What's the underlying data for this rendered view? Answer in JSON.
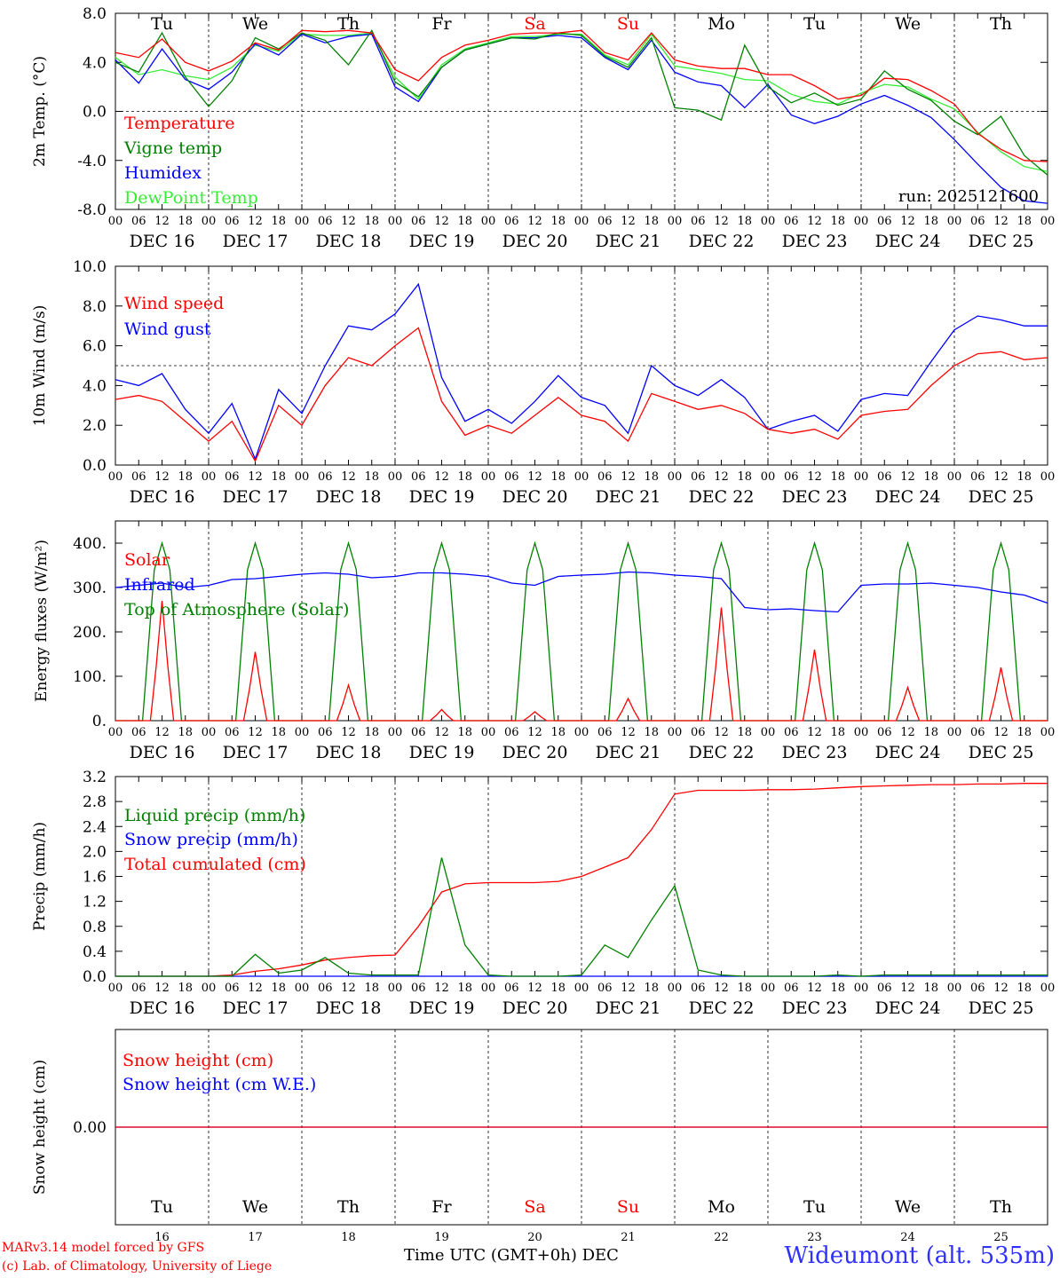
{
  "colors": {
    "red": "#ff0000",
    "green": "#008000",
    "blue": "#0000ff",
    "lightgreen": "#33ee33",
    "axis": "#000000",
    "grid": "#000000",
    "weekend": "#ff0000"
  },
  "time_axis": {
    "hour_ticks": [
      "00",
      "06",
      "12",
      "18"
    ],
    "days": [
      "DEC 16",
      "DEC 17",
      "DEC 18",
      "DEC 19",
      "DEC 20",
      "DEC 21",
      "DEC 22",
      "DEC 23",
      "DEC 24",
      "DEC 25"
    ],
    "weekdays": [
      "Tu",
      "We",
      "Th",
      "Fr",
      "Sa",
      "Su",
      "Mo",
      "Tu",
      "We",
      "Th"
    ],
    "weekend_index": [
      4,
      5
    ],
    "day_numbers": [
      "16",
      "17",
      "18",
      "19",
      "20",
      "21",
      "22",
      "23",
      "24",
      "25"
    ]
  },
  "chart_data": [
    {
      "type": "line",
      "id": "temp",
      "ylabel": "2m Temp. (°C)",
      "ylim": [
        -8,
        8
      ],
      "yticks": [
        "8.0",
        "4.0",
        "0.0",
        "-4.0",
        "-8.0"
      ],
      "ytick_values": [
        8,
        4,
        0,
        -4,
        -8
      ],
      "ref_line": 0,
      "annotation": "run: 2025121600",
      "x_hours": [
        0,
        6,
        12,
        18,
        24,
        30,
        36,
        42,
        48,
        54,
        60,
        66,
        72,
        78,
        84,
        90,
        96,
        102,
        108,
        114,
        120,
        126,
        132,
        138,
        144,
        150,
        156,
        162,
        168,
        174,
        180,
        186,
        192,
        198,
        204,
        210,
        216,
        222,
        228,
        234,
        240
      ],
      "series": [
        {
          "name": "Temperature",
          "color": "#ff0000",
          "values": [
            4.8,
            4.4,
            5.9,
            4.0,
            3.3,
            4.1,
            5.6,
            5.0,
            6.6,
            6.5,
            6.6,
            6.4,
            3.4,
            2.5,
            4.4,
            5.4,
            5.8,
            6.3,
            6.4,
            6.4,
            6.6,
            4.8,
            4.2,
            6.4,
            4.2,
            3.7,
            3.5,
            3.5,
            3.0,
            3.0,
            2.1,
            1.0,
            1.3,
            2.7,
            2.6,
            1.7,
            0.6,
            -1.8,
            -3.1,
            -4.0,
            -4.1
          ]
        },
        {
          "name": "Vigne temp",
          "color": "#008000",
          "values": [
            4.0,
            3.2,
            6.4,
            2.8,
            0.4,
            2.5,
            6.0,
            5.1,
            6.4,
            5.8,
            3.8,
            6.6,
            2.4,
            1.2,
            3.6,
            5.0,
            5.5,
            6.0,
            5.9,
            6.4,
            6.2,
            4.5,
            3.6,
            6.0,
            0.3,
            0.1,
            -0.7,
            5.4,
            2.0,
            0.7,
            1.5,
            0.5,
            1.0,
            3.3,
            1.8,
            0.9,
            -0.8,
            -1.9,
            -0.4,
            -3.6,
            -5.2
          ]
        },
        {
          "name": "Humidex",
          "color": "#0000ff",
          "values": [
            4.2,
            2.3,
            5.1,
            2.6,
            1.8,
            3.2,
            5.5,
            4.6,
            6.3,
            5.6,
            6.1,
            6.3,
            2.0,
            0.8,
            3.6,
            5.0,
            5.5,
            6.0,
            6.0,
            6.2,
            6.0,
            4.4,
            3.4,
            5.8,
            3.2,
            2.4,
            2.1,
            0.3,
            2.2,
            -0.3,
            -1.0,
            -0.4,
            0.6,
            1.3,
            0.5,
            -0.5,
            -2.3,
            -4.3,
            -6.2,
            -7.3,
            -7.5
          ]
        },
        {
          "name": "DewPoint Temp",
          "color": "#33ee33",
          "values": [
            4.4,
            3.0,
            3.4,
            2.9,
            2.6,
            3.6,
            5.4,
            4.9,
            6.3,
            6.2,
            6.2,
            6.4,
            2.8,
            1.0,
            3.8,
            5.1,
            5.6,
            6.1,
            6.1,
            6.3,
            6.3,
            4.6,
            3.8,
            6.3,
            3.7,
            3.4,
            3.1,
            2.6,
            2.5,
            1.4,
            0.8,
            0.6,
            1.5,
            2.2,
            2.0,
            1.0,
            0.2,
            -1.7,
            -3.3,
            -4.5,
            -4.9
          ]
        }
      ]
    },
    {
      "type": "line",
      "id": "wind",
      "ylabel": "10m Wind (m/s)",
      "ylim": [
        0,
        10
      ],
      "yticks": [
        "10.0",
        "8.0",
        "6.0",
        "4.0",
        "2.0",
        "0.0"
      ],
      "ytick_values": [
        10,
        8,
        6,
        4,
        2,
        0
      ],
      "ref_line": 5,
      "x_hours": [
        0,
        6,
        12,
        18,
        24,
        30,
        36,
        42,
        48,
        54,
        60,
        66,
        72,
        78,
        84,
        90,
        96,
        102,
        108,
        114,
        120,
        126,
        132,
        138,
        144,
        150,
        156,
        162,
        168,
        174,
        180,
        186,
        192,
        198,
        204,
        210,
        216,
        222,
        228,
        234,
        240
      ],
      "series": [
        {
          "name": "Wind speed",
          "color": "#ff0000",
          "values": [
            3.3,
            3.5,
            3.2,
            2.2,
            1.2,
            2.2,
            0.2,
            3.0,
            2.0,
            4.0,
            5.4,
            5.0,
            6.0,
            6.9,
            3.2,
            1.5,
            2.0,
            1.6,
            2.5,
            3.4,
            2.5,
            2.2,
            1.2,
            3.6,
            3.2,
            2.8,
            3.0,
            2.6,
            1.8,
            1.6,
            1.8,
            1.3,
            2.5,
            2.7,
            2.8,
            4.0,
            5.0,
            5.6,
            5.7,
            5.3,
            5.4
          ]
        },
        {
          "name": "Wind gust",
          "color": "#0000ff",
          "values": [
            4.3,
            4.0,
            4.6,
            2.8,
            1.6,
            3.1,
            0.3,
            3.8,
            2.6,
            5.0,
            7.0,
            6.8,
            7.6,
            9.1,
            4.4,
            2.2,
            2.8,
            2.1,
            3.2,
            4.5,
            3.4,
            3.0,
            1.6,
            5.0,
            4.0,
            3.5,
            4.3,
            3.4,
            1.8,
            2.2,
            2.5,
            1.7,
            3.3,
            3.6,
            3.5,
            5.2,
            6.8,
            7.5,
            7.3,
            7.0,
            7.0
          ]
        }
      ]
    },
    {
      "type": "line",
      "id": "energy",
      "ylabel": "Energy fluxes (W/m²)",
      "ylim": [
        0,
        450
      ],
      "yticks": [
        "400.",
        "300.",
        "200.",
        "100.",
        "0."
      ],
      "ytick_values": [
        400,
        300,
        200,
        100,
        0
      ],
      "daily_solar_peaks": [
        270,
        155,
        80,
        25,
        20,
        50,
        255,
        160,
        75,
        120
      ],
      "toa_peak": 400,
      "x_hours": [
        0,
        6,
        12,
        18,
        24,
        30,
        36,
        42,
        48,
        54,
        60,
        66,
        72,
        78,
        84,
        90,
        96,
        102,
        108,
        114,
        120,
        126,
        132,
        138,
        144,
        150,
        156,
        162,
        168,
        174,
        180,
        186,
        192,
        198,
        204,
        210,
        216,
        222,
        228,
        234,
        240
      ],
      "series": [
        {
          "name": "Solar",
          "color": "#ff0000",
          "values": []
        },
        {
          "name": "Infrared",
          "color": "#0000ff",
          "values": [
            300,
            305,
            310,
            300,
            305,
            318,
            320,
            325,
            330,
            333,
            330,
            322,
            325,
            333,
            333,
            330,
            325,
            310,
            305,
            325,
            328,
            330,
            335,
            333,
            328,
            325,
            320,
            255,
            250,
            252,
            248,
            245,
            305,
            308,
            308,
            310,
            305,
            300,
            290,
            283,
            265
          ]
        },
        {
          "name": "Top of Atmosphere (Solar)",
          "color": "#008000",
          "values": []
        }
      ]
    },
    {
      "type": "line",
      "id": "precip",
      "ylabel": "Precip (mm/h)",
      "ylim": [
        0,
        3.2
      ],
      "yticks": [
        "3.2",
        "2.8",
        "2.4",
        "2.0",
        "1.6",
        "1.2",
        "0.8",
        "0.4",
        "0.0"
      ],
      "ytick_values": [
        3.2,
        2.8,
        2.4,
        2.0,
        1.6,
        1.2,
        0.8,
        0.4,
        0.0
      ],
      "x_hours": [
        0,
        6,
        12,
        18,
        24,
        30,
        36,
        42,
        48,
        54,
        60,
        66,
        72,
        78,
        84,
        90,
        96,
        102,
        108,
        114,
        120,
        126,
        132,
        138,
        144,
        150,
        156,
        162,
        168,
        174,
        180,
        186,
        192,
        198,
        204,
        210,
        216,
        222,
        228,
        234,
        240
      ],
      "series": [
        {
          "name": "Liquid precip (mm/h)",
          "color": "#008000",
          "values": [
            0,
            0,
            0,
            0,
            0,
            0,
            0.35,
            0.05,
            0.1,
            0.3,
            0.05,
            0.02,
            0.02,
            0.02,
            1.9,
            0.5,
            0.02,
            0,
            0,
            0,
            0.02,
            0.5,
            0.3,
            0.9,
            1.45,
            0.1,
            0.02,
            0,
            0,
            0,
            0,
            0.02,
            0,
            0.02,
            0.02,
            0.02,
            0.02,
            0.02,
            0.02,
            0.02,
            0.02
          ]
        },
        {
          "name": "Snow precip (mm/h)",
          "color": "#0000ff",
          "values": [
            0,
            0,
            0,
            0,
            0,
            0,
            0,
            0,
            0,
            0,
            0,
            0,
            0,
            0,
            0,
            0,
            0,
            0,
            0,
            0,
            0,
            0,
            0,
            0,
            0,
            0,
            0,
            0,
            0,
            0,
            0,
            0,
            0,
            0,
            0,
            0,
            0,
            0,
            0,
            0,
            0
          ]
        },
        {
          "name": "Total cumulated (cm)",
          "color": "#ff0000",
          "values": [
            0,
            0,
            0,
            0,
            0,
            0.02,
            0.08,
            0.12,
            0.18,
            0.26,
            0.3,
            0.33,
            0.34,
            0.8,
            1.35,
            1.48,
            1.5,
            1.5,
            1.5,
            1.52,
            1.6,
            1.75,
            1.9,
            2.35,
            2.92,
            2.98,
            2.98,
            2.98,
            2.99,
            2.99,
            3.0,
            3.02,
            3.04,
            3.05,
            3.06,
            3.07,
            3.07,
            3.08,
            3.08,
            3.09,
            3.09
          ]
        }
      ]
    },
    {
      "type": "line",
      "id": "snow",
      "ylabel": "Snow height (cm)",
      "ylim": [
        -1,
        1
      ],
      "yticks": [
        "0.00"
      ],
      "ytick_values": [
        0
      ],
      "x_hours": [
        0,
        240
      ],
      "series": [
        {
          "name": "Snow height (cm)",
          "color": "#ff0000",
          "values": [
            0,
            0
          ]
        },
        {
          "name": "Snow height (cm W.E.)",
          "color": "#0000ff",
          "values": [
            0,
            0
          ]
        }
      ]
    }
  ],
  "footer": {
    "model_line1": "MARv3.14 model forced by GFS",
    "model_line2": "(c) Lab. of Climatology, University of Liege",
    "xlabel": "Time UTC (GMT+0h)",
    "month": "DEC",
    "station": "Wideumont (alt. 535m)"
  }
}
